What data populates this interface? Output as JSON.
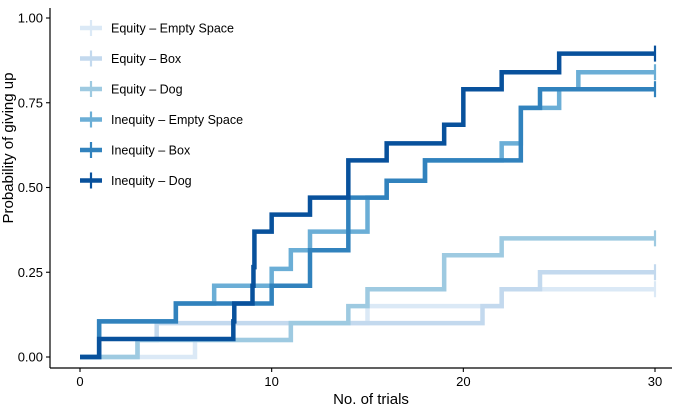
{
  "chart_data": {
    "type": "line",
    "subtype": "step (Kaplan–Meier style cumulative curves)",
    "xlabel": "No. of trials",
    "ylabel": "Probability of giving up",
    "xlim": [
      0,
      31
    ],
    "ylim": [
      0,
      1.0
    ],
    "x_ticks": [
      0,
      10,
      20,
      30
    ],
    "x_tick_labels": [
      "0",
      "10",
      "20",
      "30"
    ],
    "y_ticks": [
      0,
      0.25,
      0.5,
      0.75,
      1.0
    ],
    "y_tick_labels": [
      "0.00",
      "0.25",
      "0.50",
      "0.75",
      "1.00"
    ],
    "legend_position": "top-left",
    "censor_marker": "+ at x = 30",
    "series": [
      {
        "name": "Equity – Empty Space",
        "color": "#dbe9f6",
        "steps": [
          [
            0,
            0
          ],
          [
            6,
            0.05
          ],
          [
            11,
            0.1
          ],
          [
            15,
            0.15
          ],
          [
            22,
            0.2
          ],
          [
            30,
            0.2
          ]
        ]
      },
      {
        "name": "Equity – Box",
        "color": "#c3d9ee",
        "steps": [
          [
            0,
            0
          ],
          [
            3,
            0.05
          ],
          [
            4,
            0.1
          ],
          [
            21,
            0.15
          ],
          [
            22,
            0.2
          ],
          [
            24,
            0.25
          ],
          [
            30,
            0.25
          ]
        ]
      },
      {
        "name": "Equity – Dog",
        "color": "#9ecae1",
        "steps": [
          [
            0,
            0
          ],
          [
            3,
            0.05
          ],
          [
            11,
            0.1
          ],
          [
            14,
            0.15
          ],
          [
            15,
            0.2
          ],
          [
            19,
            0.3
          ],
          [
            22,
            0.35
          ],
          [
            30,
            0.35
          ]
        ]
      },
      {
        "name": "Inequity – Empty Space",
        "color": "#6baed6",
        "steps": [
          [
            0,
            0
          ],
          [
            1,
            0.105
          ],
          [
            5,
            0.158
          ],
          [
            7,
            0.21
          ],
          [
            10,
            0.26
          ],
          [
            11,
            0.315
          ],
          [
            12,
            0.37
          ],
          [
            15,
            0.47
          ],
          [
            16,
            0.52
          ],
          [
            18,
            0.58
          ],
          [
            22,
            0.63
          ],
          [
            23,
            0.735
          ],
          [
            25,
            0.79
          ],
          [
            26,
            0.84
          ],
          [
            30,
            0.84
          ]
        ]
      },
      {
        "name": "Inequity – Box",
        "color": "#3182bd",
        "steps": [
          [
            0,
            0
          ],
          [
            1,
            0.105
          ],
          [
            5,
            0.158
          ],
          [
            10,
            0.21
          ],
          [
            12,
            0.315
          ],
          [
            14,
            0.47
          ],
          [
            16,
            0.52
          ],
          [
            18,
            0.58
          ],
          [
            23,
            0.735
          ],
          [
            24,
            0.79
          ],
          [
            30,
            0.79
          ]
        ]
      },
      {
        "name": "Inequity – Dog",
        "color": "#08519c",
        "steps": [
          [
            0,
            0
          ],
          [
            1,
            0.053
          ],
          [
            8,
            0.105
          ],
          [
            8.05,
            0.158
          ],
          [
            9,
            0.21
          ],
          [
            9.05,
            0.265
          ],
          [
            9.1,
            0.37
          ],
          [
            10,
            0.42
          ],
          [
            12,
            0.47
          ],
          [
            14,
            0.58
          ],
          [
            16,
            0.63
          ],
          [
            19,
            0.685
          ],
          [
            20,
            0.79
          ],
          [
            22,
            0.84
          ],
          [
            25,
            0.895
          ],
          [
            30,
            0.895
          ]
        ]
      }
    ]
  }
}
